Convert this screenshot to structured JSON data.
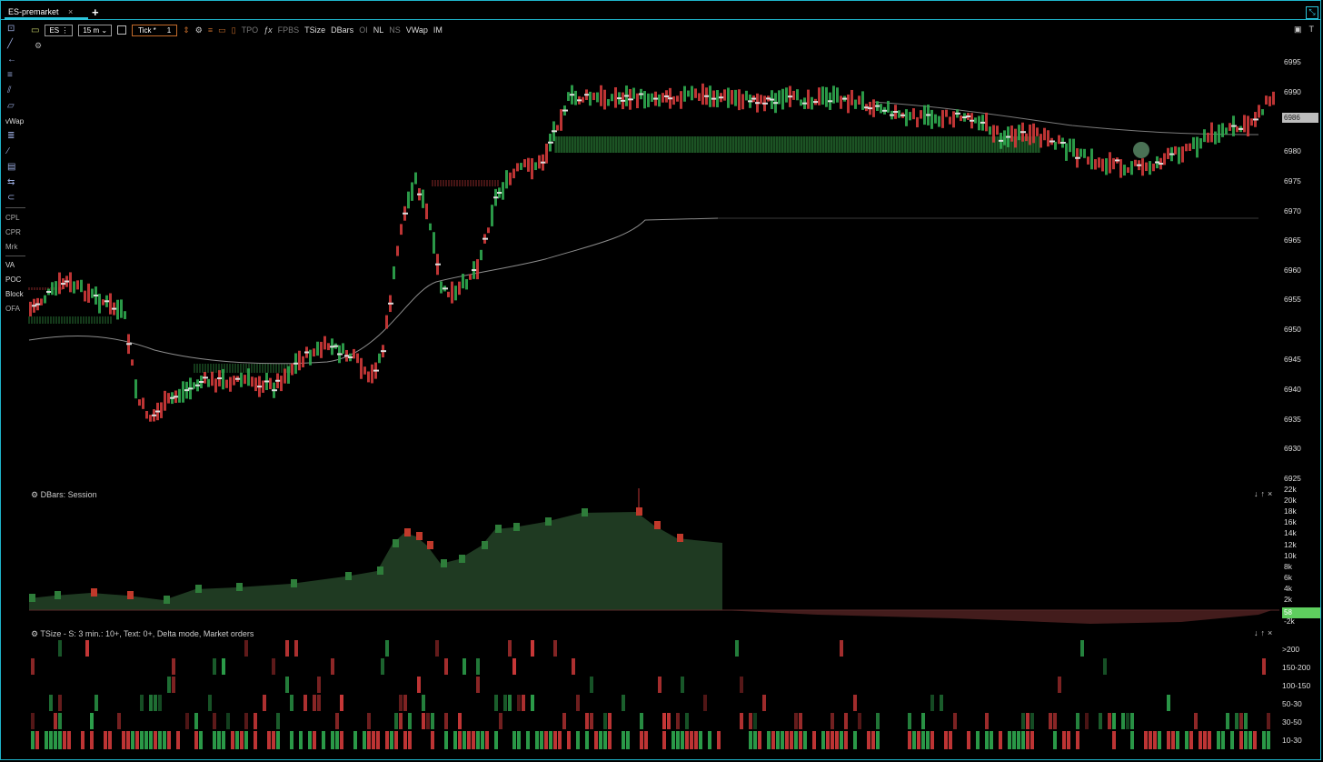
{
  "window": {
    "tab_label": "ES-premarket",
    "tab_close": "×",
    "new_tab": "+",
    "restore": "⤡"
  },
  "toolbar": {
    "symbol": "ES",
    "symbol_more": "⋮",
    "timeframe": "15 m",
    "tick_label": "Tick *",
    "tick_value": "1",
    "items": [
      "TPO",
      "FPBS",
      "TSize",
      "DBars",
      "OI",
      "NL",
      "NS",
      "VWap",
      "IM"
    ],
    "text_tool": "T"
  },
  "left_tools": {
    "vwap": "vWap",
    "cpl": "CPL",
    "cpr": "CPR",
    "mrk": "Mrk",
    "va": "VA",
    "poc": "POC",
    "block": "Block",
    "ofa": "OFA"
  },
  "price_axis": {
    "labels": [
      "6995",
      "6990",
      "6986",
      "6980",
      "6975",
      "6970",
      "6965",
      "6960",
      "6955",
      "6950",
      "6945",
      "6940",
      "6935",
      "6930",
      "6925"
    ],
    "current_price": "6986"
  },
  "dbars_panel": {
    "title": "DBars: Session",
    "axis_labels": [
      "22k",
      "20k",
      "18k",
      "16k",
      "14k",
      "12k",
      "10k",
      "8k",
      "6k",
      "4k",
      "2k",
      "-2k"
    ],
    "current_value": "58",
    "controls": "↓↑×"
  },
  "tsize_panel": {
    "title": "TSize - S: 3 min.: 10+, Text: 0+, Delta mode,  Market orders",
    "rows": [
      ">200",
      "150-200",
      "100-150",
      "50-30",
      "30-50",
      "10-30"
    ],
    "controls": "↓↑×"
  },
  "colors": {
    "accent": "#1fb3c9",
    "up": "#2fa84f",
    "down": "#d23a3a",
    "area": "#1f3a22"
  }
}
